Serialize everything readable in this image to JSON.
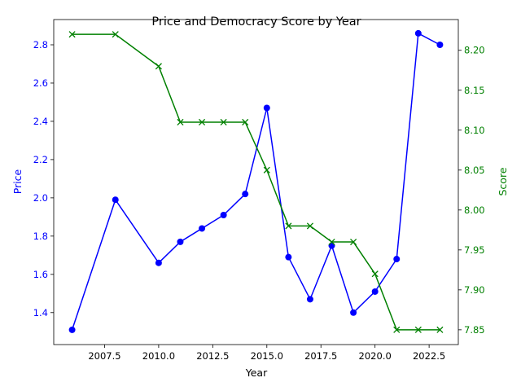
{
  "chart_data": {
    "type": "line",
    "title": "Price and Democracy Score by Year",
    "xlabel": "Year",
    "y1label": "Price",
    "y2label": "Score",
    "xlim": [
      2005.15,
      2023.85
    ],
    "y1lim": [
      1.233,
      2.932
    ],
    "y2lim": [
      7.8315,
      8.2385
    ],
    "x_ticks": [
      2007.5,
      2010.0,
      2012.5,
      2015.0,
      2017.5,
      2020.0,
      2022.5
    ],
    "x_tick_labels": [
      "2007.5",
      "2010.0",
      "2012.5",
      "2015.0",
      "2017.5",
      "2020.0",
      "2022.5"
    ],
    "y1_ticks": [
      1.4,
      1.6,
      1.8,
      2.0,
      2.2,
      2.4,
      2.6,
      2.8
    ],
    "y1_tick_labels": [
      "1.4",
      "1.6",
      "1.8",
      "2.0",
      "2.2",
      "2.4",
      "2.6",
      "2.8"
    ],
    "y2_ticks": [
      7.85,
      7.9,
      7.95,
      8.0,
      8.05,
      8.1,
      8.15,
      8.2
    ],
    "y2_tick_labels": [
      "7.85",
      "7.90",
      "7.95",
      "8.00",
      "8.05",
      "8.10",
      "8.15",
      "8.20"
    ],
    "grid": false,
    "series": [
      {
        "name": "Price",
        "axis": "left",
        "color": "#0000ff",
        "marker": "circle",
        "x": [
          2006,
          2008,
          2010,
          2011,
          2012,
          2013,
          2014,
          2015,
          2016,
          2017,
          2018,
          2019,
          2020,
          2021,
          2022,
          2023
        ],
        "y": [
          1.31,
          1.99,
          1.66,
          1.77,
          1.84,
          1.91,
          2.02,
          2.47,
          1.69,
          1.47,
          1.75,
          1.4,
          1.51,
          1.68,
          2.86,
          2.8
        ]
      },
      {
        "name": "Score",
        "axis": "right",
        "color": "#008000",
        "marker": "x",
        "x": [
          2006,
          2008,
          2010,
          2011,
          2012,
          2013,
          2014,
          2015,
          2016,
          2017,
          2018,
          2019,
          2020,
          2021,
          2022,
          2023
        ],
        "y": [
          8.22,
          8.22,
          8.18,
          8.11,
          8.11,
          8.11,
          8.11,
          8.05,
          7.98,
          7.98,
          7.96,
          7.96,
          7.92,
          7.85,
          7.85,
          7.85
        ]
      }
    ]
  }
}
